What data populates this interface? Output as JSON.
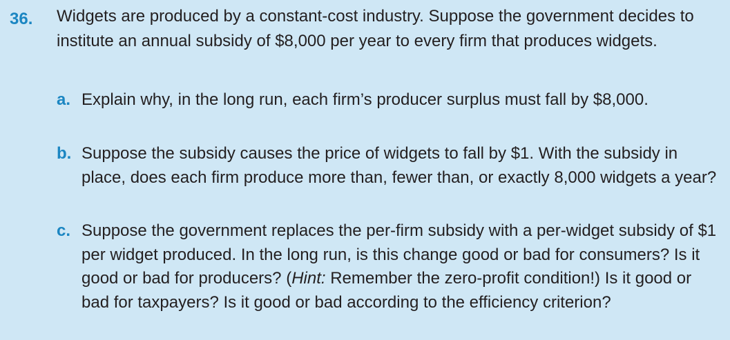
{
  "problem": {
    "number": "36.",
    "stem": "Widgets are produced by a constant-cost industry. Suppose the government decides to institute an annual subsidy of $8,000 per year to every firm that produces widgets.",
    "parts": [
      {
        "letter": "a.",
        "text": "Explain why, in the long run, each firm’s producer surplus must fall by $8,000."
      },
      {
        "letter": "b.",
        "text": "Suppose the subsidy causes the price of widgets to fall by $1. With the subsidy in place, does each firm produce more than, fewer than, or exactly 8,000 widgets a year?"
      },
      {
        "letter": "c.",
        "text_before_hint": "Suppose the government replaces the per-firm subsidy with a per-widget subsidy of $1 per widget produced. In the long run, is this change good or bad for consumers? Is it good or bad for producers? (",
        "hint_label": "Hint:",
        "text_after_hint": " Remember the zero-profit condition!) Is it good or bad for taxpayers? Is it good or bad according to the efficiency criterion?"
      }
    ]
  },
  "colors": {
    "background": "#cfe7f5",
    "accent": "#1b86c2",
    "text": "#231f20"
  }
}
